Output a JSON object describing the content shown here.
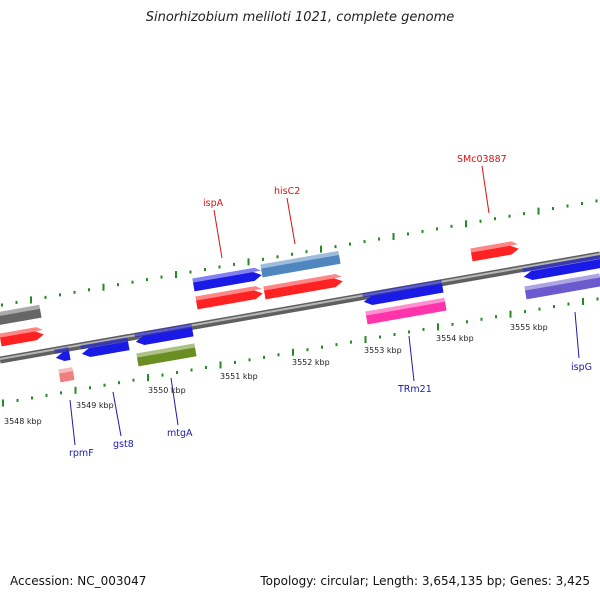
{
  "title": "Sinorhizobium meliloti 1021, complete genome",
  "footer": {
    "accession": "Accession: NC_003047",
    "topology": "Topology: circular; Length: 3,654,135 bp; Genes: 3,425"
  },
  "ticks": [
    "3548 kbp",
    "3549 kbp",
    "3550 kbp",
    "3551 kbp",
    "3552 kbp",
    "3553 kbp",
    "3554 kbp",
    "3555 kbp"
  ],
  "gene_labels": [
    "SMc03887",
    "hisC2",
    "ispA",
    "rpmF",
    "gst8",
    "mtgA",
    "TRm21",
    "ispG"
  ],
  "colors": {
    "backbone": "#8c8c8c",
    "tick": "#228b22",
    "red": "#ff2222",
    "blue": "#1a1ae6",
    "steelblue": "#4f86c0",
    "olive": "#6b8e23",
    "pink": "#ff33aa",
    "lightred": "#f08080",
    "slateblue": "#6a5acd",
    "gray": "#666666",
    "label_red": "#dd1111",
    "label_blue": "#1a1ab0"
  }
}
